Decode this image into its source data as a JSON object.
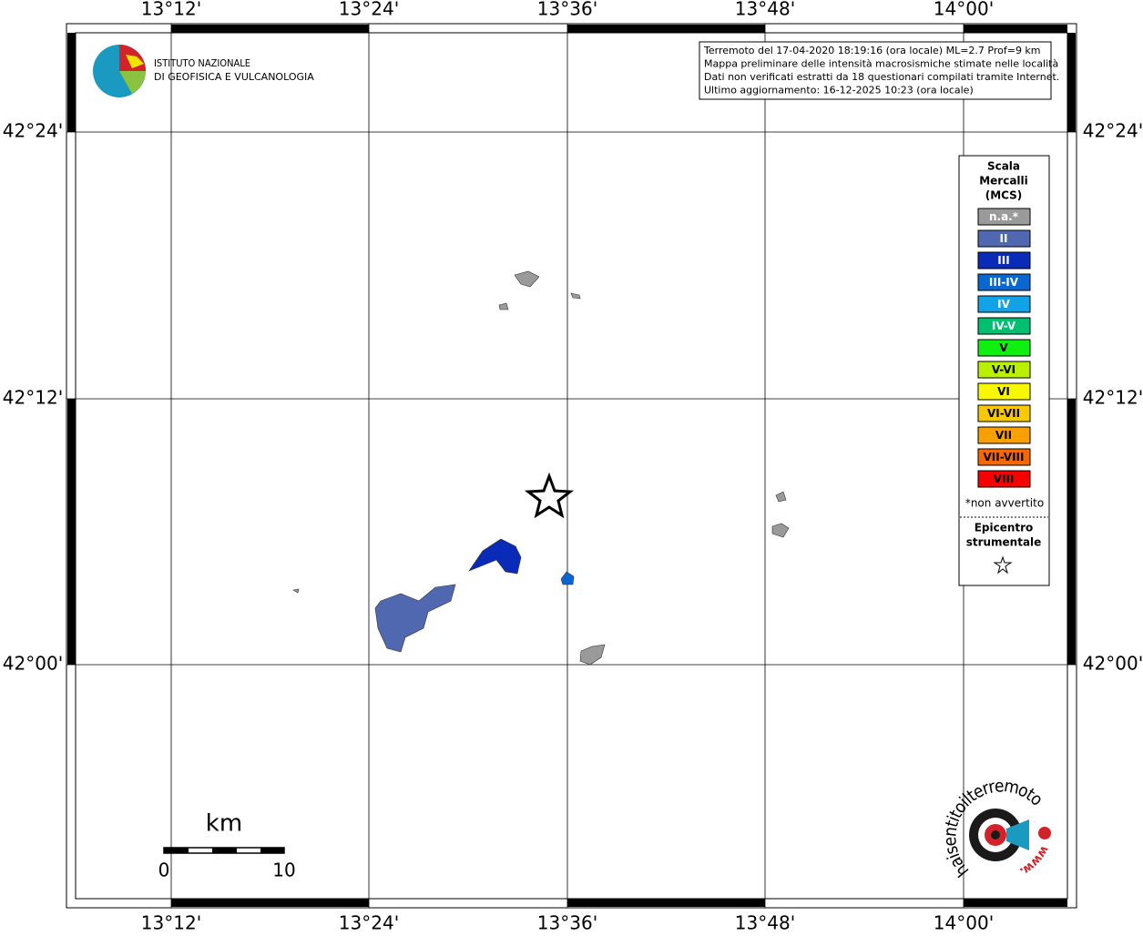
{
  "logo": {
    "line1": "ISTITUTO NAZIONALE",
    "line2": "DI GEOFISICA E VULCANOLOGIA"
  },
  "longitudes": [
    "13°12'",
    "13°24'",
    "13°36'",
    "13°48'",
    "14°00'"
  ],
  "latitudes": [
    "42°24'",
    "42°12'",
    "42°00'"
  ],
  "info": [
    "Terremoto del 17-04-2020 18:19:16 (ora locale) ML=2.7 Prof=9 km",
    "Mappa preliminare delle intensità macrosismiche stimate nelle località",
    "Dati non verificati estratti da 18 questionari compilati tramite Internet.",
    "Ultimo aggiornamento: 16-12-2025 10:23 (ora locale)"
  ],
  "legend": {
    "title": [
      "Scala",
      "Mercalli",
      "(MCS)"
    ],
    "items": [
      {
        "label": "n.a.*",
        "color": "#9a9a9a"
      },
      {
        "label": "II",
        "color": "#5068b0"
      },
      {
        "label": "III",
        "color": "#0a2ab8"
      },
      {
        "label": "III-IV",
        "color": "#0a66d0"
      },
      {
        "label": "IV",
        "color": "#12a2e8"
      },
      {
        "label": "IV-V",
        "color": "#00c070"
      },
      {
        "label": "V",
        "color": "#10f010"
      },
      {
        "label": "V-VI",
        "color": "#b8f000"
      },
      {
        "label": "VI",
        "color": "#f8f800"
      },
      {
        "label": "VI-VII",
        "color": "#f8c800"
      },
      {
        "label": "VII",
        "color": "#f8a000"
      },
      {
        "label": "VII-VIII",
        "color": "#f86800"
      },
      {
        "label": "VIII",
        "color": "#f80000"
      }
    ],
    "note": "*non avvertito",
    "epicenter": [
      "Epicentro",
      "strumentale"
    ]
  },
  "scalebar": {
    "unit": "km",
    "start": "0",
    "end": "10"
  },
  "badge": {
    "url": "haisentitoilterremoto.it",
    "www": "www."
  }
}
